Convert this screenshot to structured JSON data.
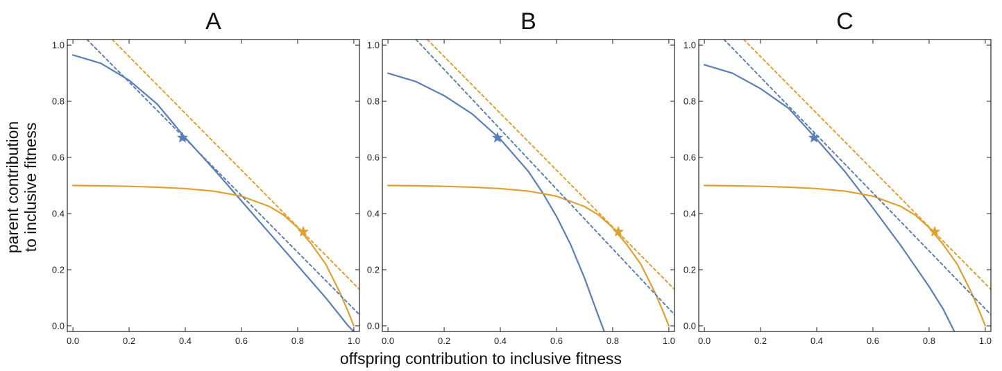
{
  "figure": {
    "xlabel": "offspring contribution to inclusive fitness",
    "ylabel_line1": "parent contribution",
    "ylabel_line2": "to inclusive fitness"
  },
  "chart_data": [
    {
      "type": "line",
      "title": "A",
      "xlim": [
        -0.02,
        1.02
      ],
      "ylim": [
        -0.02,
        1.02
      ],
      "xticks": [
        0.0,
        0.2,
        0.4,
        0.6,
        0.8,
        1.0
      ],
      "yticks": [
        0.0,
        0.2,
        0.4,
        0.6,
        0.8,
        1.0
      ],
      "tick_labels": [
        "0.0",
        "0.2",
        "0.4",
        "0.6",
        "0.8",
        "1.0"
      ],
      "grid": false,
      "series": [
        {
          "color": "#5b7fb5",
          "style": "solid",
          "x": [
            0.0,
            0.1,
            0.2,
            0.3,
            0.4,
            0.5,
            0.6,
            0.7,
            0.8,
            0.9,
            0.98,
            1.0
          ],
          "y": [
            0.965,
            0.935,
            0.875,
            0.79,
            0.67,
            0.56,
            0.445,
            0.33,
            0.215,
            0.1,
            0.0,
            -0.02
          ]
        },
        {
          "color": "#e0a030",
          "style": "solid",
          "x": [
            0.0,
            0.1,
            0.2,
            0.3,
            0.4,
            0.5,
            0.6,
            0.7,
            0.75,
            0.8,
            0.85,
            0.9,
            0.95,
            0.98,
            1.0
          ],
          "y": [
            0.5,
            0.499,
            0.497,
            0.494,
            0.489,
            0.48,
            0.462,
            0.425,
            0.395,
            0.35,
            0.29,
            0.22,
            0.12,
            0.05,
            0.0
          ]
        },
        {
          "color": "#5b7fb5",
          "style": "dashed",
          "x": [
            0.05,
            1.02
          ],
          "y": [
            1.02,
            0.04
          ]
        },
        {
          "color": "#e0a030",
          "style": "dashed",
          "x": [
            0.14,
            1.02
          ],
          "y": [
            1.02,
            0.13
          ]
        }
      ],
      "markers": [
        {
          "x": 0.39,
          "y": 0.67,
          "color": "#5b7fb5"
        },
        {
          "x": 0.82,
          "y": 0.335,
          "color": "#e0a030"
        }
      ]
    },
    {
      "type": "line",
      "title": "B",
      "xlim": [
        -0.02,
        1.02
      ],
      "ylim": [
        -0.02,
        1.02
      ],
      "xticks": [
        0.0,
        0.2,
        0.4,
        0.6,
        0.8,
        1.0
      ],
      "yticks": [
        0.0,
        0.2,
        0.4,
        0.6,
        0.8,
        1.0
      ],
      "tick_labels": [
        "0.0",
        "0.2",
        "0.4",
        "0.6",
        "0.8",
        "1.0"
      ],
      "grid": false,
      "series": [
        {
          "color": "#5b7fb5",
          "style": "solid",
          "x": [
            0.0,
            0.1,
            0.2,
            0.3,
            0.4,
            0.5,
            0.55,
            0.6,
            0.65,
            0.7,
            0.74,
            0.77
          ],
          "y": [
            0.9,
            0.87,
            0.82,
            0.755,
            0.665,
            0.55,
            0.475,
            0.39,
            0.29,
            0.17,
            0.06,
            -0.02
          ]
        },
        {
          "color": "#e0a030",
          "style": "solid",
          "x": [
            0.0,
            0.1,
            0.2,
            0.3,
            0.4,
            0.5,
            0.6,
            0.7,
            0.75,
            0.8,
            0.85,
            0.9,
            0.95,
            0.98,
            1.0
          ],
          "y": [
            0.5,
            0.499,
            0.497,
            0.494,
            0.489,
            0.48,
            0.462,
            0.425,
            0.395,
            0.35,
            0.29,
            0.22,
            0.12,
            0.05,
            0.0
          ]
        },
        {
          "color": "#5b7fb5",
          "style": "dashed",
          "x": [
            0.1,
            1.02
          ],
          "y": [
            1.02,
            0.04
          ]
        },
        {
          "color": "#e0a030",
          "style": "dashed",
          "x": [
            0.14,
            1.02
          ],
          "y": [
            1.02,
            0.13
          ]
        }
      ],
      "markers": [
        {
          "x": 0.39,
          "y": 0.67,
          "color": "#5b7fb5"
        },
        {
          "x": 0.82,
          "y": 0.335,
          "color": "#e0a030"
        }
      ]
    },
    {
      "type": "line",
      "title": "C",
      "xlim": [
        -0.02,
        1.02
      ],
      "ylim": [
        -0.02,
        1.02
      ],
      "xticks": [
        0.0,
        0.2,
        0.4,
        0.6,
        0.8,
        1.0
      ],
      "yticks": [
        0.0,
        0.2,
        0.4,
        0.6,
        0.8,
        1.0
      ],
      "tick_labels": [
        "0.0",
        "0.2",
        "0.4",
        "0.6",
        "0.8",
        "1.0"
      ],
      "grid": false,
      "series": [
        {
          "color": "#5b7fb5",
          "style": "solid",
          "x": [
            0.0,
            0.1,
            0.2,
            0.3,
            0.4,
            0.5,
            0.6,
            0.7,
            0.8,
            0.85,
            0.89
          ],
          "y": [
            0.93,
            0.9,
            0.845,
            0.775,
            0.665,
            0.55,
            0.42,
            0.285,
            0.14,
            0.06,
            -0.02
          ]
        },
        {
          "color": "#e0a030",
          "style": "solid",
          "x": [
            0.0,
            0.1,
            0.2,
            0.3,
            0.4,
            0.5,
            0.6,
            0.7,
            0.75,
            0.8,
            0.85,
            0.9,
            0.95,
            0.98,
            1.0
          ],
          "y": [
            0.5,
            0.499,
            0.497,
            0.494,
            0.489,
            0.48,
            0.462,
            0.425,
            0.395,
            0.35,
            0.29,
            0.22,
            0.12,
            0.05,
            0.0
          ]
        },
        {
          "color": "#5b7fb5",
          "style": "dashed",
          "x": [
            0.07,
            1.02
          ],
          "y": [
            1.02,
            0.04
          ]
        },
        {
          "color": "#e0a030",
          "style": "dashed",
          "x": [
            0.14,
            1.02
          ],
          "y": [
            1.02,
            0.13
          ]
        }
      ],
      "markers": [
        {
          "x": 0.39,
          "y": 0.67,
          "color": "#5b7fb5"
        },
        {
          "x": 0.82,
          "y": 0.335,
          "color": "#e0a030"
        }
      ]
    }
  ]
}
